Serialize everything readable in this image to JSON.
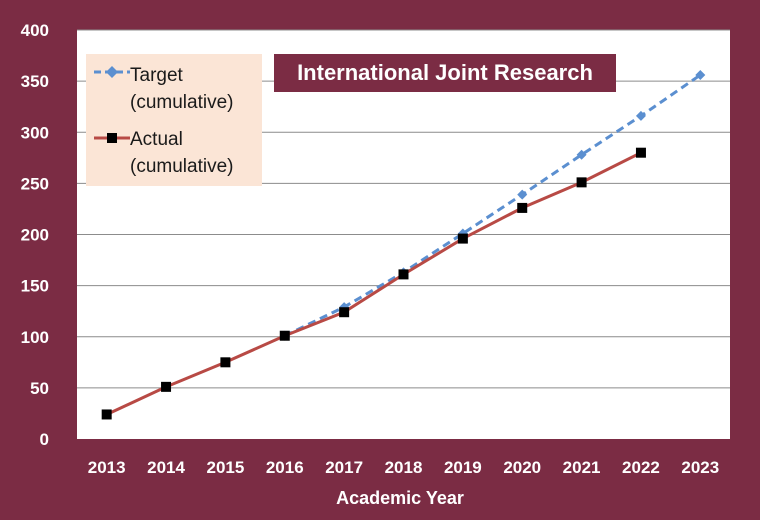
{
  "chart_data": {
    "type": "line",
    "title": "International Joint Research",
    "xlabel": "Academic Year",
    "ylabel": "",
    "ylim": [
      0,
      400
    ],
    "yticks": [
      0,
      50,
      100,
      150,
      200,
      250,
      300,
      350,
      400
    ],
    "categories": [
      "2013",
      "2014",
      "2015",
      "2016",
      "2017",
      "2018",
      "2019",
      "2020",
      "2021",
      "2022",
      "2023"
    ],
    "grid": true,
    "legend_position": "top-left",
    "series": [
      {
        "name": "Target (cumulative)",
        "name_lines": [
          "Target",
          "(cumulative)"
        ],
        "color": "#5b8fd0",
        "style": "dashed",
        "marker": "diamond",
        "values": [
          null,
          null,
          null,
          101,
          129,
          163,
          201,
          239,
          278,
          316,
          356
        ]
      },
      {
        "name": "Actual (cumulative)",
        "name_lines": [
          "Actual",
          "(cumulative)"
        ],
        "color": "#b84a45",
        "style": "solid",
        "marker": "square",
        "values": [
          24,
          51,
          75,
          101,
          124,
          161,
          196,
          226,
          251,
          280,
          null
        ]
      }
    ]
  },
  "colors": {
    "background": "#7b2c44",
    "plot_area": "#ffffff",
    "legend_background": "#fbe5d6",
    "gridline": "#8c8c8c"
  }
}
